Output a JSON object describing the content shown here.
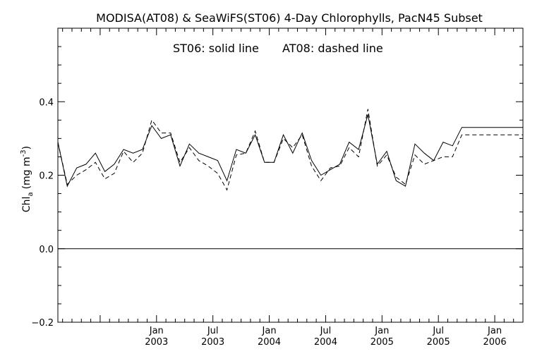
{
  "chart_data": {
    "type": "line",
    "title": "MODISA(AT08) & SeaWiFS(ST06) 4-Day Chlorophylls, PacN45 Subset",
    "annotation_left": "ST06: solid line",
    "annotation_right": "AT08: dashed line",
    "ylabel": "Chl",
    "ylabel_sub": "a",
    "ylabel_unit_pre": "(mg m",
    "ylabel_unit_sup": "-3",
    "ylabel_unit_post": ")",
    "xlim": [
      2002.125,
      2006.25
    ],
    "ylim": [
      -0.2,
      0.6
    ],
    "x_ticks": [
      {
        "x": 2003.0,
        "month": "Jan",
        "year": "2003"
      },
      {
        "x": 2003.5,
        "month": "Jul",
        "year": "2003"
      },
      {
        "x": 2004.0,
        "month": "Jan",
        "year": "2004"
      },
      {
        "x": 2004.5,
        "month": "Jul",
        "year": "2004"
      },
      {
        "x": 2005.0,
        "month": "Jan",
        "year": "2005"
      },
      {
        "x": 2005.5,
        "month": "Jul",
        "year": "2005"
      },
      {
        "x": 2006.0,
        "month": "Jan",
        "year": "2006"
      }
    ],
    "y_ticks": [
      {
        "v": -0.2,
        "label": "−0.2"
      },
      {
        "v": 0.0,
        "label": "0.0"
      },
      {
        "v": 0.2,
        "label": "0.2"
      },
      {
        "v": 0.4,
        "label": "0.4"
      }
    ],
    "zero_line": 0.0,
    "series": [
      {
        "name": "ST06",
        "style": "solid",
        "x": [
          2002.125,
          2002.208,
          2002.292,
          2002.375,
          2002.458,
          2002.542,
          2002.625,
          2002.708,
          2002.792,
          2002.875,
          2002.958,
          2003.042,
          2003.125,
          2003.208,
          2003.292,
          2003.375,
          2003.458,
          2003.542,
          2003.625,
          2003.708,
          2003.792,
          2003.875,
          2003.958,
          2004.042,
          2004.125,
          2004.208,
          2004.292,
          2004.375,
          2004.458,
          2004.542,
          2004.625,
          2004.708,
          2004.792,
          2004.875,
          2004.958,
          2005.042,
          2005.125,
          2005.208,
          2005.292,
          2005.375,
          2005.458,
          2005.542,
          2005.625,
          2005.708,
          2005.792,
          2005.875,
          2005.958,
          2006.042,
          2006.125,
          2006.208,
          2006.25
        ],
        "y": [
          0.29,
          0.17,
          0.22,
          0.23,
          0.26,
          0.21,
          0.23,
          0.27,
          0.26,
          0.27,
          0.335,
          0.3,
          0.31,
          0.225,
          0.285,
          0.26,
          0.25,
          0.24,
          0.185,
          0.27,
          0.26,
          0.31,
          0.235,
          0.235,
          0.31,
          0.26,
          0.315,
          0.24,
          0.2,
          0.215,
          0.23,
          0.29,
          0.27,
          0.365,
          0.23,
          0.265,
          0.185,
          0.17,
          0.285,
          0.26,
          0.24,
          0.29,
          0.28,
          0.33,
          0.33,
          0.33,
          0.33,
          0.33,
          0.33,
          0.33,
          0.33
        ]
      },
      {
        "name": "AT08",
        "style": "dashed",
        "x": [
          2002.125,
          2002.208,
          2002.292,
          2002.375,
          2002.458,
          2002.542,
          2002.625,
          2002.708,
          2002.792,
          2002.875,
          2002.958,
          2003.042,
          2003.125,
          2003.208,
          2003.292,
          2003.375,
          2003.458,
          2003.542,
          2003.625,
          2003.708,
          2003.792,
          2003.875,
          2003.958,
          2004.042,
          2004.125,
          2004.208,
          2004.292,
          2004.375,
          2004.458,
          2004.542,
          2004.625,
          2004.708,
          2004.792,
          2004.875,
          2004.958,
          2005.042,
          2005.125,
          2005.208,
          2005.292,
          2005.375,
          2005.458,
          2005.542,
          2005.625,
          2005.708,
          2005.792,
          2005.875,
          2005.958,
          2006.042,
          2006.125,
          2006.208,
          2006.25
        ],
        "y": [
          0.29,
          0.175,
          0.2,
          0.215,
          0.235,
          0.19,
          0.205,
          0.265,
          0.235,
          0.26,
          0.35,
          0.315,
          0.315,
          0.235,
          0.275,
          0.24,
          0.225,
          0.205,
          0.16,
          0.255,
          0.26,
          0.32,
          0.235,
          0.235,
          0.3,
          0.275,
          0.31,
          0.225,
          0.185,
          0.22,
          0.225,
          0.275,
          0.25,
          0.38,
          0.225,
          0.255,
          0.195,
          0.175,
          0.255,
          0.23,
          0.24,
          0.25,
          0.25,
          0.31,
          0.31,
          0.31,
          0.31,
          0.31,
          0.31,
          0.31,
          0.31
        ]
      }
    ]
  }
}
